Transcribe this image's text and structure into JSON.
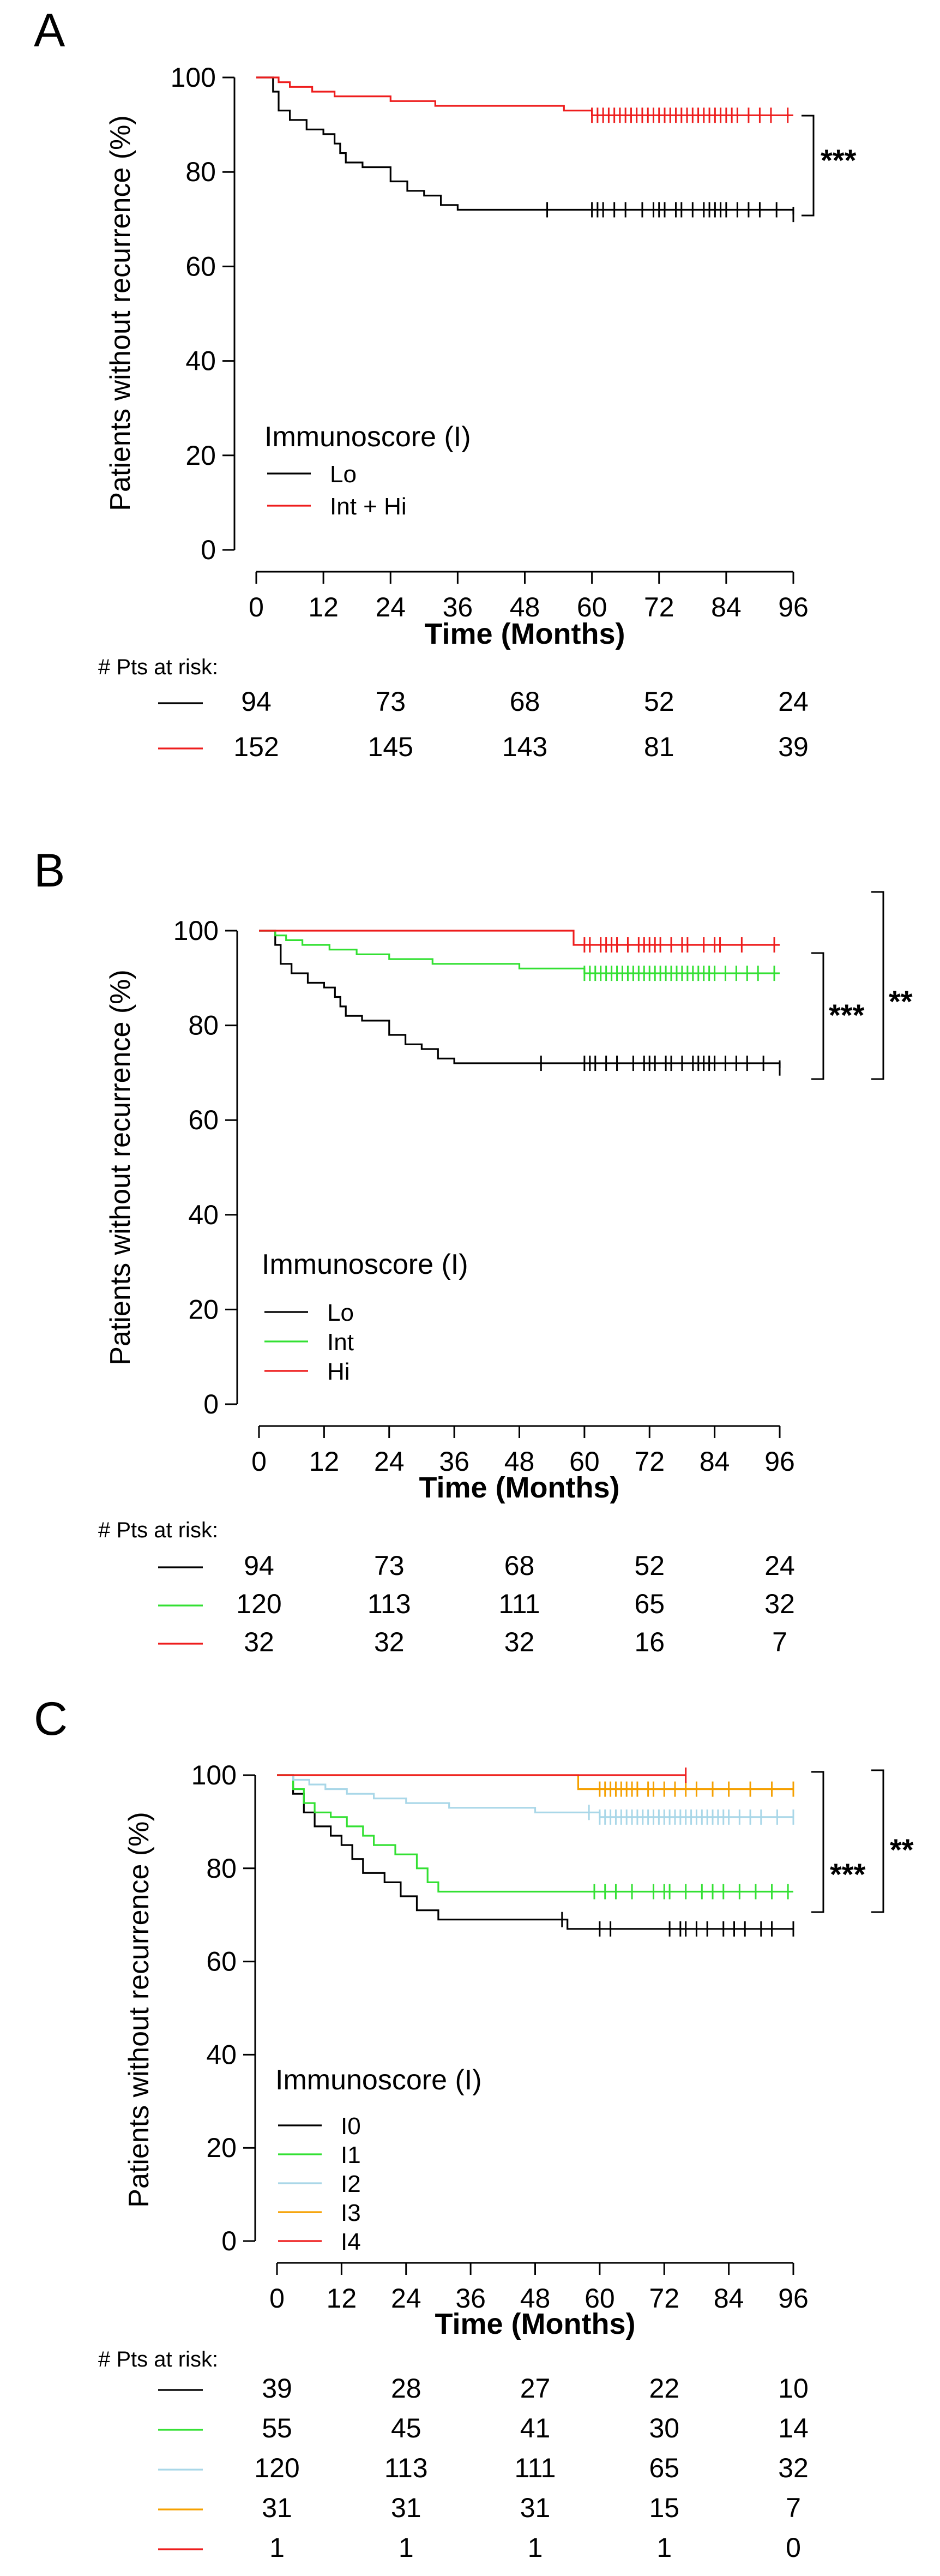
{
  "colors": {
    "black": "#000000",
    "red": "#ee1d1d",
    "green": "#33e033",
    "lightblue": "#a9d7e8",
    "orange": "#f5a000",
    "axis": "#000000"
  },
  "chart_data": [
    {
      "type": "line",
      "subtype": "kaplan-meier",
      "panel_label": "A",
      "title": "",
      "xlabel": "Time (Months)",
      "ylabel": "Patients without recurrence (%)",
      "xlim": [
        0,
        96
      ],
      "ylim": [
        0,
        100
      ],
      "xticks": [
        0,
        12,
        24,
        36,
        48,
        60,
        72,
        84,
        96
      ],
      "yticks": [
        0,
        20,
        40,
        60,
        80,
        100
      ],
      "legend_title": "Immunoscore (I)",
      "significance": [
        {
          "label": "***"
        }
      ],
      "risk_table_label": "# Pts at risk:",
      "risk_times": [
        0,
        24,
        48,
        72,
        96
      ],
      "series": [
        {
          "name": "Lo",
          "color": "#000000",
          "steps": [
            [
              0,
              100
            ],
            [
              3,
              97
            ],
            [
              4,
              93
            ],
            [
              6,
              91
            ],
            [
              9,
              89
            ],
            [
              12,
              88
            ],
            [
              14,
              86
            ],
            [
              15,
              84
            ],
            [
              16,
              82
            ],
            [
              19,
              81
            ],
            [
              24,
              78
            ],
            [
              27,
              76
            ],
            [
              30,
              75
            ],
            [
              33,
              73
            ],
            [
              36,
              72
            ],
            [
              96,
              71
            ]
          ],
          "censor": [
            52,
            60,
            61,
            62,
            64,
            66,
            69,
            71,
            72,
            73,
            75,
            76,
            78,
            80,
            81,
            82,
            83,
            84,
            86,
            88,
            90,
            93,
            96
          ],
          "risk": [
            "94",
            "73",
            "68",
            "52",
            "24"
          ]
        },
        {
          "name": "Int + Hi",
          "color": "#ee1d1d",
          "steps": [
            [
              0,
              100
            ],
            [
              4,
              99
            ],
            [
              6,
              98
            ],
            [
              10,
              97
            ],
            [
              14,
              96
            ],
            [
              24,
              95
            ],
            [
              32,
              94
            ],
            [
              55,
              93
            ],
            [
              60,
              92
            ],
            [
              96,
              92
            ]
          ],
          "censor": [
            60,
            61,
            62,
            63,
            64,
            65,
            66,
            67,
            68,
            69,
            70,
            71,
            72,
            73,
            74,
            75,
            76,
            77,
            78,
            79,
            80,
            81,
            82,
            83,
            84,
            85,
            86,
            88,
            90,
            92,
            95
          ],
          "risk": [
            "152",
            "145",
            "143",
            "81",
            "39"
          ]
        }
      ]
    },
    {
      "type": "line",
      "subtype": "kaplan-meier",
      "panel_label": "B",
      "title": "",
      "xlabel": "Time (Months)",
      "ylabel": "Patients without recurrence (%)",
      "xlim": [
        0,
        96
      ],
      "ylim": [
        0,
        100
      ],
      "xticks": [
        0,
        12,
        24,
        36,
        48,
        60,
        72,
        84,
        96
      ],
      "yticks": [
        0,
        20,
        40,
        60,
        80,
        100
      ],
      "legend_title": "Immunoscore (I)",
      "significance": [
        {
          "label": "***"
        },
        {
          "label": "**"
        }
      ],
      "risk_table_label": "# Pts at risk:",
      "risk_times": [
        0,
        24,
        48,
        72,
        96
      ],
      "series": [
        {
          "name": "Lo",
          "color": "#000000",
          "steps": [
            [
              0,
              100
            ],
            [
              3,
              97
            ],
            [
              4,
              93
            ],
            [
              6,
              91
            ],
            [
              9,
              89
            ],
            [
              12,
              88
            ],
            [
              14,
              86
            ],
            [
              15,
              84
            ],
            [
              16,
              82
            ],
            [
              19,
              81
            ],
            [
              24,
              78
            ],
            [
              27,
              76
            ],
            [
              30,
              75
            ],
            [
              33,
              73
            ],
            [
              36,
              72
            ],
            [
              96,
              71
            ]
          ],
          "censor": [
            52,
            60,
            61,
            62,
            64,
            66,
            69,
            71,
            72,
            73,
            75,
            76,
            78,
            80,
            81,
            82,
            83,
            84,
            86,
            88,
            90,
            93,
            96
          ],
          "risk": [
            "94",
            "73",
            "68",
            "52",
            "24"
          ]
        },
        {
          "name": "Int",
          "color": "#33e033",
          "steps": [
            [
              0,
              100
            ],
            [
              3,
              99
            ],
            [
              5,
              98
            ],
            [
              8,
              97
            ],
            [
              13,
              96
            ],
            [
              18,
              95
            ],
            [
              24,
              94
            ],
            [
              32,
              93
            ],
            [
              48,
              92
            ],
            [
              60,
              91
            ],
            [
              96,
              91
            ]
          ],
          "censor": [
            60,
            61,
            62,
            63,
            64,
            65,
            66,
            67,
            68,
            69,
            70,
            71,
            72,
            73,
            74,
            75,
            76,
            77,
            78,
            79,
            80,
            81,
            82,
            83,
            84,
            86,
            88,
            90,
            92,
            95
          ],
          "risk": [
            "120",
            "113",
            "111",
            "65",
            "32"
          ]
        },
        {
          "name": "Hi",
          "color": "#ee1d1d",
          "steps": [
            [
              0,
              100
            ],
            [
              57,
              100
            ],
            [
              58,
              97
            ],
            [
              96,
              97
            ]
          ],
          "censor": [
            60,
            61,
            63,
            64,
            65,
            66,
            68,
            70,
            71,
            72,
            73,
            74,
            76,
            78,
            79,
            82,
            84,
            85,
            89,
            95
          ],
          "risk": [
            "32",
            "32",
            "32",
            "16",
            "7"
          ]
        }
      ]
    },
    {
      "type": "line",
      "subtype": "kaplan-meier",
      "panel_label": "C",
      "title": "",
      "xlabel": "Time (Months)",
      "ylabel": "Patients without recurrence (%)",
      "xlim": [
        0,
        96
      ],
      "ylim": [
        0,
        100
      ],
      "xticks": [
        0,
        12,
        24,
        36,
        48,
        60,
        72,
        84,
        96
      ],
      "yticks": [
        0,
        20,
        40,
        60,
        80,
        100
      ],
      "legend_title": "Immunoscore (I)",
      "significance": [
        {
          "label": "***"
        },
        {
          "label": "**"
        }
      ],
      "risk_table_label": "# Pts at risk:",
      "risk_times": [
        0,
        24,
        48,
        72,
        96
      ],
      "series": [
        {
          "name": "I0",
          "color": "#000000",
          "steps": [
            [
              0,
              100
            ],
            [
              3,
              96
            ],
            [
              5,
              92
            ],
            [
              7,
              89
            ],
            [
              10,
              87
            ],
            [
              12,
              85
            ],
            [
              14,
              82
            ],
            [
              16,
              79
            ],
            [
              20,
              77
            ],
            [
              23,
              74
            ],
            [
              26,
              71
            ],
            [
              30,
              69
            ],
            [
              54,
              67
            ],
            [
              96,
              67
            ]
          ],
          "censor": [
            53,
            60,
            62,
            73,
            75,
            76,
            78,
            80,
            83,
            85,
            87,
            90,
            92,
            96
          ],
          "risk": [
            "39",
            "28",
            "27",
            "22",
            "10"
          ]
        },
        {
          "name": "I1",
          "color": "#33e033",
          "steps": [
            [
              0,
              100
            ],
            [
              3,
              97
            ],
            [
              5,
              94
            ],
            [
              7,
              92
            ],
            [
              10,
              91
            ],
            [
              13,
              89
            ],
            [
              16,
              87
            ],
            [
              18,
              85
            ],
            [
              22,
              83
            ],
            [
              26,
              80
            ],
            [
              28,
              77
            ],
            [
              30,
              75
            ],
            [
              96,
              75
            ]
          ],
          "censor": [
            59,
            61,
            63,
            66,
            70,
            72,
            73,
            76,
            79,
            81,
            83,
            86,
            89,
            92,
            95
          ],
          "risk": [
            "55",
            "45",
            "41",
            "30",
            "14"
          ]
        },
        {
          "name": "I2",
          "color": "#a9d7e8",
          "steps": [
            [
              0,
              100
            ],
            [
              3,
              99
            ],
            [
              6,
              98
            ],
            [
              9,
              97
            ],
            [
              13,
              96
            ],
            [
              18,
              95
            ],
            [
              24,
              94
            ],
            [
              32,
              93
            ],
            [
              48,
              92
            ],
            [
              60,
              91
            ],
            [
              96,
              91
            ]
          ],
          "censor": [
            58,
            60,
            61,
            62,
            63,
            64,
            65,
            66,
            67,
            68,
            69,
            70,
            71,
            72,
            73,
            74,
            75,
            76,
            77,
            78,
            79,
            80,
            81,
            82,
            83,
            84,
            86,
            88,
            90,
            93,
            96
          ],
          "risk": [
            "120",
            "113",
            "111",
            "65",
            "32"
          ]
        },
        {
          "name": "I3",
          "color": "#f5a000",
          "steps": [
            [
              0,
              100
            ],
            [
              55,
              100
            ],
            [
              56,
              97
            ],
            [
              96,
              97
            ]
          ],
          "censor": [
            60,
            61,
            62,
            63,
            64,
            65,
            66,
            67,
            69,
            70,
            72,
            74,
            76,
            78,
            81,
            84,
            88,
            92,
            96
          ],
          "risk": [
            "31",
            "31",
            "31",
            "15",
            "7"
          ]
        },
        {
          "name": "I4",
          "color": "#ee1d1d",
          "steps": [
            [
              0,
              100
            ],
            [
              76,
              100
            ]
          ],
          "censor": [
            76
          ],
          "risk": [
            "1",
            "1",
            "1",
            "1",
            "0"
          ]
        }
      ]
    }
  ]
}
